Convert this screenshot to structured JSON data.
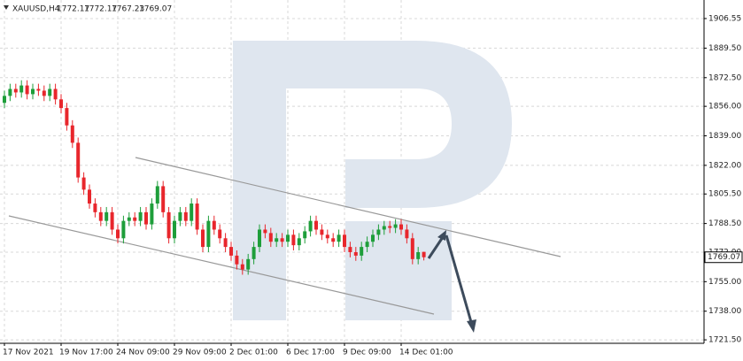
{
  "chart_data": {
    "type": "candlestick",
    "title": "XAUUSD,H4",
    "categories": [
      "17 Nov 2021",
      null,
      null,
      null,
      null,
      null,
      null,
      null,
      null,
      null,
      "19 Nov 17:00",
      null,
      null,
      null,
      null,
      null,
      null,
      null,
      null,
      null,
      "24 Nov 09:00",
      null,
      null,
      null,
      null,
      null,
      null,
      null,
      null,
      null,
      "29 Nov 09:00",
      null,
      null,
      null,
      null,
      null,
      null,
      null,
      null,
      null,
      "2 Dec 01:00",
      null,
      null,
      null,
      null,
      null,
      null,
      null,
      null,
      null,
      "6 Dec 17:00",
      null,
      null,
      null,
      null,
      null,
      null,
      null,
      null,
      null,
      "9 Dec 09:00",
      null,
      null,
      null,
      null,
      null,
      null,
      null,
      null,
      null,
      "14 Dec 01:00",
      null,
      null,
      null,
      null
    ],
    "open": [
      1858,
      1862,
      1866,
      1864,
      1868,
      1863,
      1866,
      1865,
      1862,
      1866,
      1860,
      1855,
      1845,
      1835,
      1815,
      1808,
      1800,
      1795,
      1790,
      1795,
      1785,
      1780,
      1790,
      1792,
      1790,
      1795,
      1788,
      1800,
      1810,
      1795,
      1780,
      1790,
      1795,
      1790,
      1800,
      1785,
      1775,
      1790,
      1785,
      1780,
      1775,
      1770,
      1765,
      1762,
      1768,
      1775,
      1785,
      1783,
      1778,
      1780,
      1778,
      1782,
      1776,
      1780,
      1784,
      1790,
      1785,
      1782,
      1780,
      1778,
      1782,
      1775,
      1772,
      1770,
      1775,
      1778,
      1782,
      1785,
      1787,
      1786,
      1788,
      1785,
      1780,
      1768,
      1772.17
    ],
    "high": [
      1865,
      1869,
      1869,
      1871,
      1871,
      1869,
      1869,
      1868,
      1869,
      1869,
      1863,
      1858,
      1848,
      1838,
      1818,
      1811,
      1803,
      1798,
      1798,
      1798,
      1788,
      1793,
      1795,
      1795,
      1798,
      1798,
      1803,
      1813,
      1813,
      1798,
      1793,
      1798,
      1798,
      1803,
      1803,
      1788,
      1793,
      1793,
      1788,
      1783,
      1778,
      1773,
      1768,
      1771,
      1778,
      1788,
      1788,
      1786,
      1783,
      1783,
      1785,
      1785,
      1783,
      1787,
      1793,
      1793,
      1788,
      1785,
      1783,
      1785,
      1785,
      1778,
      1775,
      1778,
      1781,
      1785,
      1788,
      1790,
      1790,
      1791,
      1791,
      1788,
      1783,
      1775,
      1772.17
    ],
    "low": [
      1855,
      1859,
      1861,
      1861,
      1860,
      1860,
      1862,
      1859,
      1859,
      1857,
      1852,
      1842,
      1832,
      1812,
      1805,
      1797,
      1792,
      1787,
      1787,
      1782,
      1777,
      1777,
      1787,
      1787,
      1787,
      1785,
      1785,
      1797,
      1792,
      1777,
      1777,
      1787,
      1787,
      1787,
      1782,
      1772,
      1772,
      1782,
      1777,
      1772,
      1767,
      1762,
      1759,
      1759,
      1765,
      1772,
      1780,
      1775,
      1775,
      1775,
      1775,
      1773,
      1773,
      1777,
      1781,
      1782,
      1779,
      1777,
      1775,
      1775,
      1772,
      1769,
      1767,
      1767,
      1772,
      1775,
      1779,
      1782,
      1783,
      1783,
      1782,
      1777,
      1765,
      1765,
      1767.23
    ],
    "close": [
      1862,
      1866,
      1864,
      1868,
      1863,
      1866,
      1865,
      1862,
      1866,
      1860,
      1855,
      1845,
      1835,
      1815,
      1808,
      1800,
      1795,
      1790,
      1795,
      1785,
      1780,
      1790,
      1792,
      1790,
      1795,
      1788,
      1800,
      1810,
      1795,
      1780,
      1790,
      1795,
      1790,
      1800,
      1785,
      1775,
      1790,
      1785,
      1780,
      1775,
      1770,
      1765,
      1762,
      1768,
      1775,
      1785,
      1783,
      1778,
      1780,
      1778,
      1782,
      1776,
      1780,
      1784,
      1790,
      1785,
      1782,
      1780,
      1778,
      1782,
      1775,
      1772,
      1770,
      1775,
      1778,
      1782,
      1785,
      1787,
      1786,
      1788,
      1785,
      1780,
      1768,
      1772,
      1769.07
    ],
    "up_color": "#1e9e3a",
    "down_color": "#e8262c",
    "ylim": [
      1719.5,
      1915.7
    ],
    "yticks": [
      {
        "value": 1721.5,
        "label": "1721.50"
      },
      {
        "value": 1738,
        "label": "1738.00"
      },
      {
        "value": 1755,
        "label": "1755.00"
      },
      {
        "value": 1772,
        "label": "1772.00"
      },
      {
        "value": 1788.5,
        "label": "1788.50"
      },
      {
        "value": 1805.5,
        "label": "1805.50"
      },
      {
        "value": 1822,
        "label": "1822.00"
      },
      {
        "value": 1839,
        "label": "1839.00"
      },
      {
        "value": 1856,
        "label": "1856.00"
      },
      {
        "value": 1872.5,
        "label": "1872.50"
      },
      {
        "value": 1889.5,
        "label": "1889.50"
      },
      {
        "value": 1906.55,
        "label": "1906.55"
      }
    ],
    "grid": true
  }
}
